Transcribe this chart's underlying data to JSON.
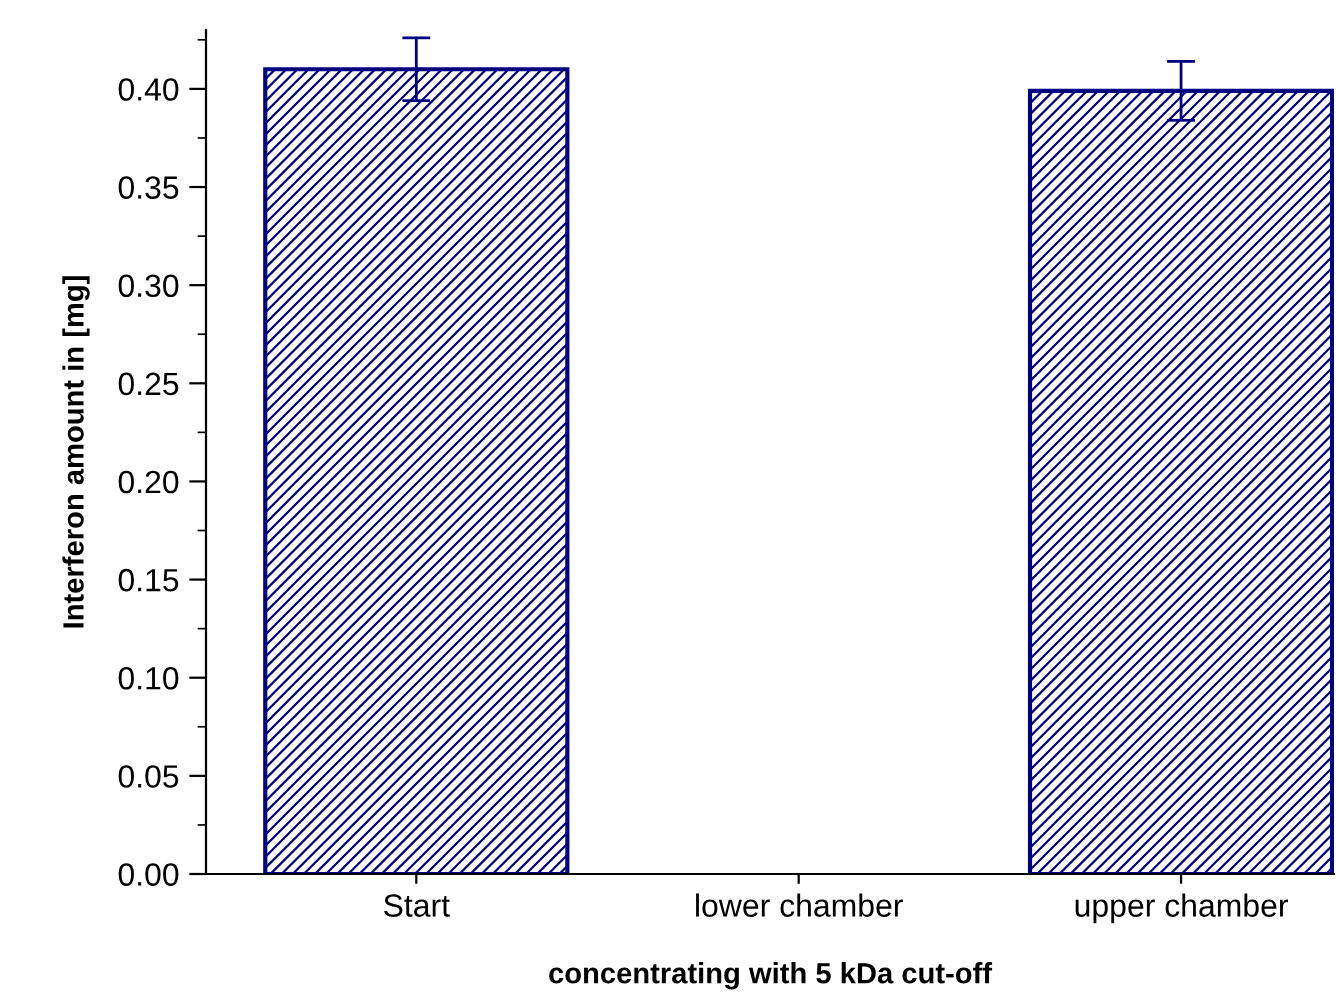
{
  "chart_data": {
    "type": "bar",
    "xlabel": "concentrating with 5 kDa cut-off",
    "ylabel": "Interferon amount in [mg]",
    "categories": [
      "Start",
      "lower chamber",
      "upper chamber"
    ],
    "values": [
      0.41,
      0,
      0.399
    ],
    "errors": [
      0.016,
      null,
      0.015
    ],
    "color": "#000080",
    "ylim": [
      0,
      0.43
    ],
    "yticks": [
      {
        "value": 0,
        "label": "0.00"
      },
      {
        "value": 0.05,
        "label": "0.05"
      },
      {
        "value": 0.1,
        "label": "0.10"
      },
      {
        "value": 0.15,
        "label": "0.15"
      },
      {
        "value": 0.2,
        "label": "0.20"
      },
      {
        "value": 0.25,
        "label": "0.25"
      },
      {
        "value": 0.3,
        "label": "0.30"
      },
      {
        "value": 0.35,
        "label": "0.35"
      },
      {
        "value": 0.4,
        "label": "0.40"
      }
    ],
    "grid": false,
    "legend": false
  }
}
